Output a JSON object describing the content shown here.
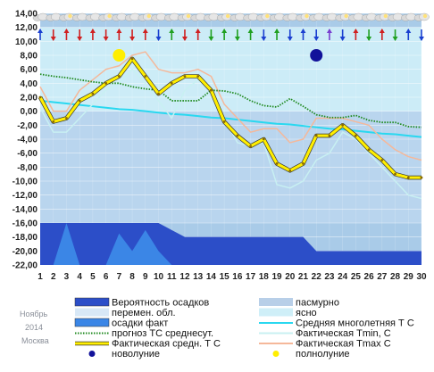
{
  "chart_data": {
    "type": "line",
    "x": [
      1,
      2,
      3,
      4,
      5,
      6,
      7,
      8,
      9,
      10,
      11,
      12,
      13,
      14,
      15,
      16,
      17,
      18,
      19,
      20,
      21,
      22,
      23,
      24,
      25,
      26,
      27,
      28,
      29,
      30
    ],
    "ylim": [
      -22,
      14
    ],
    "yticks": [
      "14,00",
      "12,00",
      "10,00",
      "8,00",
      "6,00",
      "4,00",
      "2,00",
      "0,00",
      "-2,00",
      "-4,00",
      "-6,00",
      "-8,00",
      "-10,00",
      "-12,00",
      "-14,00",
      "-16,00",
      "-18,00",
      "-20,00",
      "-22,00"
    ],
    "xticks": [
      "1",
      "2",
      "3",
      "4",
      "5",
      "6",
      "7",
      "8",
      "9",
      "10",
      "11",
      "12",
      "13",
      "14",
      "15",
      "16",
      "17",
      "18",
      "19",
      "20",
      "21",
      "22",
      "23",
      "24",
      "25",
      "26",
      "27",
      "28",
      "29",
      "30"
    ],
    "colors": {
      "precip_prob": "#2c4ec8",
      "precip_fact": "#3b86e6",
      "sky_light": "#c4dcf2",
      "sky_clear": "#cfeff8",
      "norm": "#29d8f0",
      "tmin": "#c8f0f2",
      "forecast": "#1f8a1f",
      "tavg": "#ffee00",
      "tmax": "#f5b89a",
      "new_moon": "#12129a",
      "full_moon": "#ffee00"
    },
    "series": [
      {
        "name": "Средняя многолетняя Т С",
        "key": "norm",
        "values": [
          1.5,
          1.3,
          1.1,
          0.9,
          0.7,
          0.5,
          0.3,
          0.2,
          0.0,
          -0.2,
          -0.4,
          -0.5,
          -0.7,
          -0.9,
          -1.0,
          -1.2,
          -1.4,
          -1.6,
          -1.8,
          -1.9,
          -2.1,
          -2.3,
          -2.5,
          -2.6,
          -2.8,
          -3.0,
          -3.2,
          -3.3,
          -3.5,
          -3.7
        ]
      },
      {
        "name": "Фактическая Тmin, С",
        "key": "tmin",
        "values": [
          0.5,
          -3,
          -3,
          -1,
          1,
          3,
          4,
          6,
          4,
          1.5,
          -1,
          3,
          4.5,
          3,
          -1,
          -4.5,
          -5,
          -4.5,
          -10.5,
          -11,
          -10,
          -7,
          -6,
          -3,
          -4,
          -6,
          -8,
          -10,
          -12,
          -12.5
        ]
      },
      {
        "name": "Фактическая Тmax, С",
        "key": "tmax",
        "values": [
          3.5,
          0,
          0,
          3,
          4.5,
          6,
          6.5,
          8,
          8.5,
          6,
          5.5,
          5.5,
          6,
          5,
          1,
          -1,
          -3,
          -2.5,
          -2.5,
          -4.5,
          -4,
          -1,
          -1,
          -1,
          -1.5,
          -2,
          -4,
          -5.5,
          -6.5,
          -7
        ]
      },
      {
        "name": "Фактическая средн. Т С",
        "key": "tavg",
        "values": [
          2,
          -1.5,
          -1,
          1.5,
          2.5,
          4,
          5,
          7.5,
          5,
          2.5,
          4,
          5,
          5,
          3,
          -1.5,
          -3.5,
          -5,
          -4,
          -7.5,
          -8.5,
          -7.5,
          -3.5,
          -3.5,
          -2,
          -3.5,
          -5.5,
          -7,
          -9,
          -9.5,
          -9.5
        ]
      },
      {
        "name": "прогноз ТС среднесут.",
        "key": "forecast",
        "values": [
          5.3,
          5,
          4.8,
          4.5,
          4.2,
          4,
          4,
          3.5,
          3.2,
          3,
          1.5,
          1.5,
          1.5,
          3,
          2.9,
          2.5,
          1.5,
          0.8,
          0.6,
          1.8,
          0.7,
          -0.5,
          -0.9,
          -0.9,
          -0.6,
          -1.3,
          -1.6,
          -1.6,
          -2.2,
          -2.3
        ]
      }
    ],
    "precip_prob": [
      -16,
      -16,
      -16,
      -16,
      -16,
      -16,
      -16,
      -16,
      -16,
      -16,
      -17,
      -18,
      -18,
      -18,
      -18,
      -18,
      -18,
      -18,
      -18,
      -18,
      -18,
      -20,
      -20,
      -20,
      -20,
      -20,
      -20,
      -20,
      -20,
      -20
    ],
    "precip_fact": [
      -22,
      -22,
      -16,
      -22,
      -22,
      -22,
      -17.5,
      -20,
      -17,
      -20,
      -22,
      -22,
      -22,
      -22,
      -22,
      -22,
      -22,
      -22,
      -22,
      -22,
      -22,
      -22,
      -22,
      -22,
      -22,
      -22,
      -22,
      -22,
      -22,
      -22
    ],
    "new_moon_day": 22,
    "full_moon_day": 7,
    "moon_level": 8,
    "legend": [
      {
        "key": "precip_prob",
        "label": "Вероятность осадков"
      },
      {
        "key": "overcast",
        "label": "пасмурно"
      },
      {
        "key": "variable",
        "label": "перемен. обл."
      },
      {
        "key": "clear",
        "label": "ясно"
      },
      {
        "key": "precip_fact",
        "label": "осадки факт"
      },
      {
        "key": "norm",
        "label": "Средняя многолетняя Т С"
      },
      {
        "key": "forecast",
        "label": "прогноз ТС среднесут."
      },
      {
        "key": "tmin",
        "label": "Фактическая Тmin, С"
      },
      {
        "key": "tavg",
        "label": "Фактическая средн. Т С"
      },
      {
        "key": "tmax",
        "label": "Фактическая Тmax С"
      },
      {
        "key": "new_moon",
        "label": "новолуние"
      },
      {
        "key": "full_moon",
        "label": "полнолуние"
      }
    ],
    "meta": {
      "month": "Ноябрь",
      "year": "2014",
      "city": "Москва"
    }
  }
}
